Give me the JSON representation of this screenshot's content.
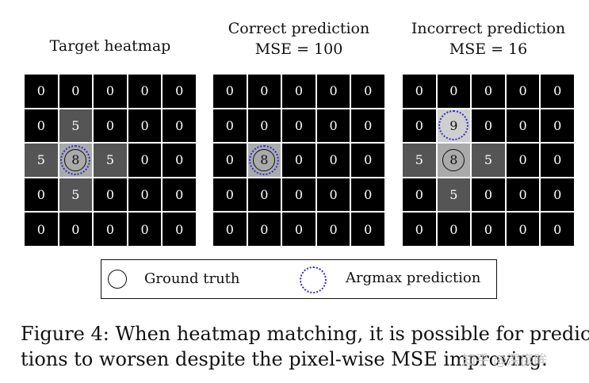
{
  "panels": [
    {
      "title_lines": [
        "Target heatmap"
      ],
      "cells": [
        [
          0,
          0,
          0,
          0,
          0
        ],
        [
          0,
          5,
          0,
          0,
          0
        ],
        [
          5,
          8,
          5,
          0,
          0
        ],
        [
          0,
          5,
          0,
          0,
          0
        ],
        [
          0,
          0,
          0,
          0,
          0
        ]
      ],
      "ground_truth": [
        2,
        1
      ],
      "argmax": [
        2,
        1
      ]
    },
    {
      "title_lines": [
        "Correct prediction",
        "MSE = 100"
      ],
      "cells": [
        [
          0,
          0,
          0,
          0,
          0
        ],
        [
          0,
          0,
          0,
          0,
          0
        ],
        [
          0,
          8,
          0,
          0,
          0
        ],
        [
          0,
          0,
          0,
          0,
          0
        ],
        [
          0,
          0,
          0,
          0,
          0
        ]
      ],
      "ground_truth": [
        2,
        1
      ],
      "argmax": [
        2,
        1
      ]
    },
    {
      "title_lines": [
        "Incorrect prediction",
        "MSE = 16"
      ],
      "cells": [
        [
          0,
          0,
          0,
          0,
          0
        ],
        [
          0,
          9,
          0,
          0,
          0
        ],
        [
          5,
          8,
          5,
          0,
          0
        ],
        [
          0,
          5,
          0,
          0,
          0
        ],
        [
          0,
          0,
          0,
          0,
          0
        ]
      ],
      "ground_truth": [
        2,
        1
      ],
      "argmax": [
        1,
        1
      ]
    }
  ],
  "legend": {
    "ground_truth_label": "Ground truth",
    "argmax_label": "Argmax prediction"
  },
  "caption": {
    "line1": "Figure 4: When heatmap matching, it is possible for predic-",
    "line2": "tions to worsen despite the pixel-wise MSE improving."
  },
  "watermark": "知乎 @深度眸",
  "colors": {
    "cell_0": "#000000",
    "cell_5": "#555555",
    "cell_8": "#aaaaaa",
    "cell_9": "#cfcfcf",
    "argmax_ring": "#2a2ad0"
  }
}
